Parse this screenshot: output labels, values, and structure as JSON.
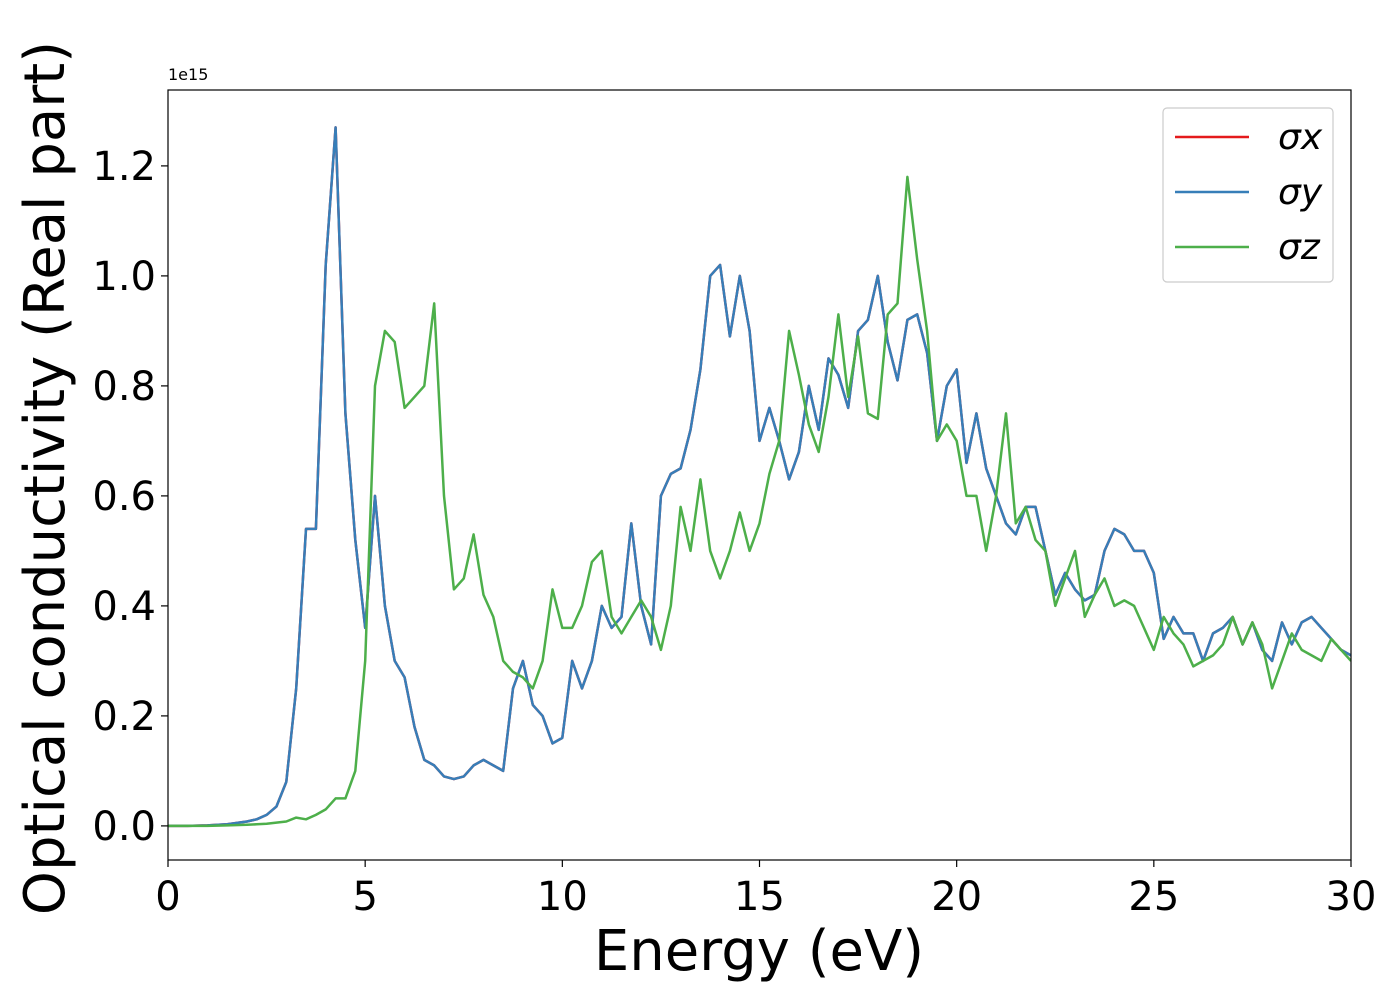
{
  "chart_data": {
    "type": "line",
    "xlabel": "Energy (eV)",
    "ylabel": "Optical conductivity (Real part)",
    "y_offset_text": "1e15",
    "x": [
      0,
      0.5,
      1,
      1.5,
      2,
      2.25,
      2.5,
      2.75,
      3,
      3.25,
      3.5,
      3.75,
      4,
      4.25,
      4.5,
      4.75,
      5,
      5.25,
      5.5,
      5.75,
      6,
      6.25,
      6.5,
      6.75,
      7,
      7.25,
      7.5,
      7.75,
      8,
      8.25,
      8.5,
      8.75,
      9,
      9.25,
      9.5,
      9.75,
      10,
      10.25,
      10.5,
      10.75,
      11,
      11.25,
      11.5,
      11.75,
      12,
      12.25,
      12.5,
      12.75,
      13,
      13.25,
      13.5,
      13.75,
      14,
      14.25,
      14.5,
      14.75,
      15,
      15.25,
      15.5,
      15.75,
      16,
      16.25,
      16.5,
      16.75,
      17,
      17.25,
      17.5,
      17.75,
      18,
      18.25,
      18.5,
      18.75,
      19,
      19.25,
      19.5,
      19.75,
      20,
      20.25,
      20.5,
      20.75,
      21,
      21.25,
      21.5,
      21.75,
      22,
      22.25,
      22.5,
      22.75,
      23,
      23.25,
      23.5,
      23.75,
      24,
      24.25,
      24.5,
      24.75,
      25,
      25.25,
      25.5,
      25.75,
      26,
      26.25,
      26.5,
      26.75,
      27,
      27.25,
      27.5,
      27.75,
      28,
      28.25,
      28.5,
      28.75,
      29,
      29.25,
      29.5,
      29.75,
      30
    ],
    "series": [
      {
        "name": "σx",
        "color": "#e41a1c",
        "values": [
          0,
          0,
          0.001,
          0.003,
          0.008,
          0.012,
          0.02,
          0.035,
          0.08,
          0.25,
          0.54,
          0.54,
          1.02,
          1.27,
          0.75,
          0.52,
          0.36,
          0.6,
          0.4,
          0.3,
          0.27,
          0.18,
          0.12,
          0.11,
          0.09,
          0.085,
          0.09,
          0.11,
          0.12,
          0.11,
          0.1,
          0.25,
          0.3,
          0.22,
          0.2,
          0.15,
          0.16,
          0.3,
          0.25,
          0.3,
          0.4,
          0.36,
          0.38,
          0.55,
          0.4,
          0.33,
          0.6,
          0.64,
          0.65,
          0.72,
          0.83,
          1.0,
          1.02,
          0.89,
          1.0,
          0.9,
          0.7,
          0.76,
          0.7,
          0.63,
          0.68,
          0.8,
          0.72,
          0.85,
          0.82,
          0.76,
          0.9,
          0.92,
          1.0,
          0.88,
          0.81,
          0.92,
          0.93,
          0.86,
          0.7,
          0.8,
          0.83,
          0.66,
          0.75,
          0.65,
          0.6,
          0.55,
          0.53,
          0.58,
          0.58,
          0.5,
          0.42,
          0.46,
          0.43,
          0.41,
          0.42,
          0.5,
          0.54,
          0.53,
          0.5,
          0.5,
          0.46,
          0.34,
          0.38,
          0.35,
          0.35,
          0.3,
          0.35,
          0.36,
          0.38,
          0.33,
          0.37,
          0.32,
          0.3,
          0.37,
          0.33,
          0.37,
          0.38,
          0.36,
          0.34,
          0.32,
          0.31
        ]
      },
      {
        "name": "σy",
        "color": "#377eb8",
        "values": [
          0,
          0,
          0.001,
          0.003,
          0.008,
          0.012,
          0.02,
          0.035,
          0.08,
          0.25,
          0.54,
          0.54,
          1.02,
          1.27,
          0.75,
          0.52,
          0.36,
          0.6,
          0.4,
          0.3,
          0.27,
          0.18,
          0.12,
          0.11,
          0.09,
          0.085,
          0.09,
          0.11,
          0.12,
          0.11,
          0.1,
          0.25,
          0.3,
          0.22,
          0.2,
          0.15,
          0.16,
          0.3,
          0.25,
          0.3,
          0.4,
          0.36,
          0.38,
          0.55,
          0.4,
          0.33,
          0.6,
          0.64,
          0.65,
          0.72,
          0.83,
          1.0,
          1.02,
          0.89,
          1.0,
          0.9,
          0.7,
          0.76,
          0.7,
          0.63,
          0.68,
          0.8,
          0.72,
          0.85,
          0.82,
          0.76,
          0.9,
          0.92,
          1.0,
          0.88,
          0.81,
          0.92,
          0.93,
          0.86,
          0.7,
          0.8,
          0.83,
          0.66,
          0.75,
          0.65,
          0.6,
          0.55,
          0.53,
          0.58,
          0.58,
          0.5,
          0.42,
          0.46,
          0.43,
          0.41,
          0.42,
          0.5,
          0.54,
          0.53,
          0.5,
          0.5,
          0.46,
          0.34,
          0.38,
          0.35,
          0.35,
          0.3,
          0.35,
          0.36,
          0.38,
          0.33,
          0.37,
          0.32,
          0.3,
          0.37,
          0.33,
          0.37,
          0.38,
          0.36,
          0.34,
          0.32,
          0.31
        ]
      },
      {
        "name": "σz",
        "color": "#4daf4a",
        "values": [
          0,
          0,
          0,
          0.001,
          0.002,
          0.003,
          0.004,
          0.006,
          0.008,
          0.015,
          0.012,
          0.02,
          0.03,
          0.05,
          0.05,
          0.1,
          0.3,
          0.8,
          0.9,
          0.88,
          0.76,
          0.78,
          0.8,
          0.95,
          0.6,
          0.43,
          0.45,
          0.53,
          0.42,
          0.38,
          0.3,
          0.28,
          0.27,
          0.25,
          0.3,
          0.43,
          0.36,
          0.36,
          0.4,
          0.48,
          0.5,
          0.38,
          0.35,
          0.38,
          0.41,
          0.38,
          0.32,
          0.4,
          0.58,
          0.5,
          0.63,
          0.5,
          0.45,
          0.5,
          0.57,
          0.5,
          0.55,
          0.64,
          0.7,
          0.9,
          0.82,
          0.73,
          0.68,
          0.78,
          0.93,
          0.78,
          0.89,
          0.75,
          0.74,
          0.93,
          0.95,
          1.18,
          1.03,
          0.9,
          0.7,
          0.73,
          0.7,
          0.6,
          0.6,
          0.5,
          0.6,
          0.75,
          0.55,
          0.58,
          0.52,
          0.5,
          0.4,
          0.45,
          0.5,
          0.38,
          0.42,
          0.45,
          0.4,
          0.41,
          0.4,
          0.36,
          0.32,
          0.38,
          0.35,
          0.33,
          0.29,
          0.3,
          0.31,
          0.33,
          0.38,
          0.33,
          0.37,
          0.33,
          0.25,
          0.3,
          0.35,
          0.32,
          0.31,
          0.3,
          0.34,
          0.32,
          0.3
        ]
      }
    ],
    "xlim": [
      0,
      30
    ],
    "xticks": [
      0,
      5,
      10,
      15,
      20,
      25,
      30
    ],
    "ylim": [
      -0.062,
      1.338
    ],
    "yticks": [
      {
        "value": 0,
        "label": "0.0"
      },
      0.2,
      0.4,
      0.6,
      0.8,
      {
        "value": 1,
        "label": "1.0"
      },
      1.2
    ],
    "legend": "upper right"
  }
}
